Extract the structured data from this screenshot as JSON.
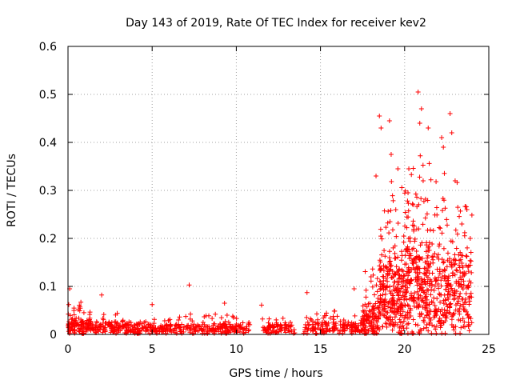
{
  "chart_data": {
    "type": "scatter",
    "title": "Day 143 of 2019, Rate Of TEC Index for receiver kev2",
    "xlabel": "GPS time / hours",
    "ylabel": "ROTI / TECUs",
    "xlim": [
      0,
      25
    ],
    "ylim": [
      0,
      0.6
    ],
    "xticks": [
      "0",
      "5",
      "10",
      "15",
      "20",
      "25"
    ],
    "yticks": [
      "0",
      "0.1",
      "0.2",
      "0.3",
      "0.4",
      "0.5",
      "0.6"
    ],
    "grid": true,
    "marker": "+",
    "colors": {
      "series": "#ff0000",
      "grid": "#a0a0a0",
      "axis": "#000000"
    },
    "series": [
      {
        "name": "ROTI",
        "note": "dense cloud mostly below 0.04 TECU/s from 0 to ~17.5 h, gaps at ~10.8-11.5 h and ~13.5-14 h; strong activity 18-24 h",
        "segments": [
          {
            "x": [
              0.0,
              1.0
            ],
            "level": 0.025,
            "spread": 0.035,
            "density": 90
          },
          {
            "x": [
              1.0,
              4.0
            ],
            "level": 0.02,
            "spread": 0.02,
            "density": 160
          },
          {
            "x": [
              4.0,
              7.0
            ],
            "level": 0.018,
            "spread": 0.015,
            "density": 140
          },
          {
            "x": [
              7.0,
              10.8
            ],
            "level": 0.018,
            "spread": 0.018,
            "density": 170
          },
          {
            "x": [
              11.5,
              13.5
            ],
            "level": 0.018,
            "spread": 0.015,
            "density": 80
          },
          {
            "x": [
              14.0,
              17.5
            ],
            "level": 0.02,
            "spread": 0.02,
            "density": 160
          },
          {
            "x": [
              17.5,
              18.5
            ],
            "level": 0.05,
            "spread": 0.06,
            "density": 120
          },
          {
            "x": [
              18.5,
              20.0
            ],
            "level": 0.12,
            "spread": 0.14,
            "density": 260
          },
          {
            "x": [
              20.0,
              21.5
            ],
            "level": 0.15,
            "spread": 0.16,
            "density": 280
          },
          {
            "x": [
              21.5,
              24.0
            ],
            "level": 0.13,
            "spread": 0.14,
            "density": 320
          }
        ],
        "notable_points": [
          {
            "x": 0.1,
            "y": 0.095
          },
          {
            "x": 2.0,
            "y": 0.082
          },
          {
            "x": 5.0,
            "y": 0.062
          },
          {
            "x": 7.2,
            "y": 0.103
          },
          {
            "x": 9.3,
            "y": 0.065
          },
          {
            "x": 11.5,
            "y": 0.061
          },
          {
            "x": 14.2,
            "y": 0.087
          },
          {
            "x": 17.0,
            "y": 0.095
          },
          {
            "x": 18.0,
            "y": 0.12
          },
          {
            "x": 18.3,
            "y": 0.33
          },
          {
            "x": 18.5,
            "y": 0.455
          },
          {
            "x": 18.6,
            "y": 0.43
          },
          {
            "x": 19.1,
            "y": 0.445
          },
          {
            "x": 19.2,
            "y": 0.375
          },
          {
            "x": 19.6,
            "y": 0.345
          },
          {
            "x": 20.5,
            "y": 0.27
          },
          {
            "x": 20.8,
            "y": 0.505
          },
          {
            "x": 20.9,
            "y": 0.44
          },
          {
            "x": 21.0,
            "y": 0.47
          },
          {
            "x": 21.1,
            "y": 0.32
          },
          {
            "x": 21.4,
            "y": 0.43
          },
          {
            "x": 22.2,
            "y": 0.41
          },
          {
            "x": 22.3,
            "y": 0.39
          },
          {
            "x": 22.7,
            "y": 0.46
          },
          {
            "x": 22.8,
            "y": 0.42
          },
          {
            "x": 23.0,
            "y": 0.32
          },
          {
            "x": 23.7,
            "y": 0.26
          },
          {
            "x": 23.9,
            "y": 0.2
          }
        ]
      }
    ]
  }
}
